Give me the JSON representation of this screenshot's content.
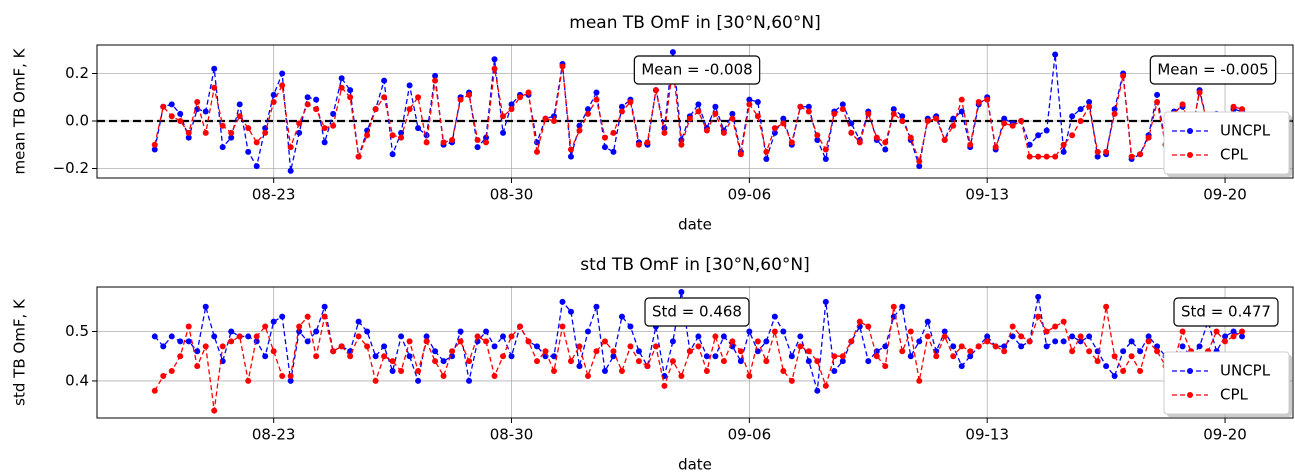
{
  "chart_data": [
    {
      "type": "line",
      "title": "mean TB OmF in [30°N,60°N]",
      "xlabel": "date",
      "ylabel": "mean TB OmF, K",
      "x": [
        231.5,
        231.75,
        232,
        232.25,
        232.5,
        232.75,
        233,
        233.25,
        233.5,
        233.75,
        234,
        234.25,
        234.5,
        234.75,
        235,
        235.25,
        235.5,
        235.75,
        236,
        236.25,
        236.5,
        236.75,
        237,
        237.25,
        237.5,
        237.75,
        238,
        238.25,
        238.5,
        238.75,
        239,
        239.25,
        239.5,
        239.75,
        240,
        240.25,
        240.5,
        240.75,
        241,
        241.25,
        241.5,
        241.75,
        242,
        242.25,
        242.5,
        242.75,
        243,
        243.25,
        243.5,
        243.75,
        244,
        244.25,
        244.5,
        244.75,
        245,
        245.25,
        245.5,
        245.75,
        246,
        246.25,
        246.5,
        246.75,
        247,
        247.25,
        247.5,
        247.75,
        248,
        248.25,
        248.5,
        248.75,
        249,
        249.25,
        249.5,
        249.75,
        250,
        250.25,
        250.5,
        250.75,
        251,
        251.25,
        251.5,
        251.75,
        252,
        252.25,
        252.5,
        252.75,
        253,
        253.25,
        253.5,
        253.75,
        254,
        254.25,
        254.5,
        254.75,
        255,
        255.25,
        255.5,
        255.75,
        256,
        256.25,
        256.5,
        256.75,
        257,
        257.25,
        257.5,
        257.75,
        258,
        258.25,
        258.5,
        258.75,
        259,
        259.25,
        259.5,
        259.75,
        260,
        260.25,
        260.5,
        260.75,
        261,
        261.25,
        261.5,
        261.75,
        262,
        262.25,
        262.5,
        262.75,
        263,
        263.25,
        263.5
      ],
      "xlim": [
        229.8,
        265
      ],
      "xticks": [
        {
          "value": 235,
          "label": "08-23"
        },
        {
          "value": 242,
          "label": "08-30"
        },
        {
          "value": 249,
          "label": "09-06"
        },
        {
          "value": 256,
          "label": "09-13"
        },
        {
          "value": 263,
          "label": "09-20"
        }
      ],
      "ylim": [
        -0.24,
        0.32
      ],
      "yticks": [
        {
          "value": -0.2,
          "label": "−0.2"
        },
        {
          "value": 0,
          "label": "0.0"
        },
        0.2
      ],
      "grid": true,
      "legend": "lower right",
      "hline": {
        "value": 0,
        "color": "#000000"
      },
      "series": [
        {
          "name": "UNCPL",
          "color": "#0000ff",
          "values": [
            -0.12,
            0.06,
            0.07,
            0.03,
            -0.07,
            0.05,
            0.04,
            0.22,
            -0.11,
            -0.07,
            0.07,
            -0.13,
            -0.19,
            -0.03,
            0.11,
            0.2,
            -0.21,
            -0.05,
            0.1,
            0.09,
            -0.09,
            0.03,
            0.18,
            0.13,
            -0.15,
            -0.04,
            0.05,
            0.17,
            -0.14,
            -0.05,
            0.15,
            -0.03,
            -0.06,
            0.19,
            -0.1,
            -0.09,
            0.1,
            0.12,
            -0.11,
            -0.07,
            0.26,
            -0.05,
            0.07,
            0.11,
            0.11,
            -0.09,
            0.01,
            0.02,
            0.24,
            -0.15,
            -0.02,
            0.05,
            0.12,
            -0.11,
            -0.13,
            0.06,
            0.09,
            -0.09,
            -0.1,
            0.13,
            -0.03,
            0.29,
            -0.08,
            0.02,
            0.07,
            -0.03,
            0.06,
            -0.04,
            0.03,
            -0.13,
            0.09,
            0.08,
            -0.16,
            -0.05,
            0.01,
            -0.1,
            0.06,
            0.06,
            -0.08,
            -0.16,
            0.04,
            0.07,
            -0.01,
            -0.08,
            0.04,
            -0.08,
            -0.12,
            0.05,
            0.02,
            -0.08,
            -0.19,
            0.01,
            0.02,
            -0.08,
            0.01,
            0.04,
            -0.11,
            0.07,
            0.1,
            -0.12,
            0.01,
            -0.01,
            0.0,
            -0.1,
            -0.06,
            -0.04,
            0.28,
            -0.13,
            0.02,
            0.05,
            0.08,
            -0.15,
            -0.14,
            0.05,
            0.2,
            -0.16,
            -0.14,
            -0.06,
            0.11,
            -0.1,
            0.04,
            0.06,
            -0.07,
            0.13,
            -0.02,
            0.03,
            -0.09,
            0.05,
            0.04
          ]
        },
        {
          "name": "CPL",
          "color": "#ff0000",
          "values": [
            -0.1,
            0.06,
            0.02,
            0.0,
            -0.05,
            0.08,
            -0.05,
            0.14,
            -0.02,
            -0.05,
            0.02,
            -0.03,
            -0.09,
            -0.05,
            0.08,
            0.15,
            -0.11,
            -0.01,
            0.07,
            0.05,
            -0.03,
            -0.02,
            0.14,
            0.1,
            -0.15,
            -0.06,
            0.05,
            0.1,
            -0.06,
            -0.07,
            0.05,
            0.1,
            -0.09,
            0.17,
            -0.09,
            -0.08,
            0.09,
            0.11,
            -0.08,
            -0.09,
            0.22,
            0.02,
            0.05,
            0.1,
            0.12,
            -0.13,
            0.01,
            0.0,
            0.23,
            -0.12,
            -0.04,
            0.03,
            0.09,
            -0.07,
            -0.05,
            0.04,
            0.08,
            -0.1,
            -0.09,
            0.13,
            -0.05,
            0.23,
            -0.1,
            0.01,
            0.04,
            -0.04,
            0.03,
            -0.05,
            0.01,
            -0.14,
            0.07,
            0.02,
            -0.13,
            -0.03,
            -0.01,
            -0.09,
            0.06,
            0.04,
            -0.06,
            -0.12,
            0.03,
            0.05,
            -0.05,
            -0.09,
            0.03,
            -0.07,
            -0.09,
            0.03,
            0.0,
            -0.07,
            -0.17,
            0.0,
            0.01,
            -0.08,
            -0.02,
            0.09,
            -0.1,
            0.08,
            0.09,
            -0.11,
            -0.01,
            -0.02,
            0.0,
            -0.15,
            -0.15,
            -0.15,
            -0.15,
            -0.1,
            -0.06,
            0.0,
            0.06,
            -0.13,
            -0.13,
            0.03,
            0.19,
            -0.15,
            -0.14,
            -0.07,
            0.08,
            -0.1,
            0.03,
            0.07,
            -0.05,
            0.12,
            -0.02,
            0.02,
            -0.05,
            0.06,
            0.05
          ]
        }
      ],
      "annotations": [
        {
          "text": "Mean = -0.008",
          "color": "#ff0000"
        },
        {
          "text": "Mean = -0.005",
          "color": "#0000ff"
        }
      ]
    },
    {
      "type": "line",
      "title": "std TB OmF in [30°N,60°N]",
      "xlabel": "date",
      "ylabel": "std TB OmF, K",
      "x": [
        231.5,
        231.75,
        232,
        232.25,
        232.5,
        232.75,
        233,
        233.25,
        233.5,
        233.75,
        234,
        234.25,
        234.5,
        234.75,
        235,
        235.25,
        235.5,
        235.75,
        236,
        236.25,
        236.5,
        236.75,
        237,
        237.25,
        237.5,
        237.75,
        238,
        238.25,
        238.5,
        238.75,
        239,
        239.25,
        239.5,
        239.75,
        240,
        240.25,
        240.5,
        240.75,
        241,
        241.25,
        241.5,
        241.75,
        242,
        242.25,
        242.5,
        242.75,
        243,
        243.25,
        243.5,
        243.75,
        244,
        244.25,
        244.5,
        244.75,
        245,
        245.25,
        245.5,
        245.75,
        246,
        246.25,
        246.5,
        246.75,
        247,
        247.25,
        247.5,
        247.75,
        248,
        248.25,
        248.5,
        248.75,
        249,
        249.25,
        249.5,
        249.75,
        250,
        250.25,
        250.5,
        250.75,
        251,
        251.25,
        251.5,
        251.75,
        252,
        252.25,
        252.5,
        252.75,
        253,
        253.25,
        253.5,
        253.75,
        254,
        254.25,
        254.5,
        254.75,
        255,
        255.25,
        255.5,
        255.75,
        256,
        256.25,
        256.5,
        256.75,
        257,
        257.25,
        257.5,
        257.75,
        258,
        258.25,
        258.5,
        258.75,
        259,
        259.25,
        259.5,
        259.75,
        260,
        260.25,
        260.5,
        260.75,
        261,
        261.25,
        261.5,
        261.75,
        262,
        262.25,
        262.5,
        262.75,
        263,
        263.25,
        263.5
      ],
      "xlim": [
        229.8,
        265
      ],
      "xticks": [
        {
          "value": 235,
          "label": "08-23"
        },
        {
          "value": 242,
          "label": "08-30"
        },
        {
          "value": 249,
          "label": "09-06"
        },
        {
          "value": 256,
          "label": "09-13"
        },
        {
          "value": 263,
          "label": "09-20"
        }
      ],
      "ylim": [
        0.325,
        0.59
      ],
      "yticks": [
        0.4,
        0.5
      ],
      "grid": true,
      "legend": "lower right",
      "series": [
        {
          "name": "UNCPL",
          "color": "#0000ff",
          "values": [
            0.49,
            0.47,
            0.49,
            0.48,
            0.48,
            0.46,
            0.55,
            0.49,
            0.44,
            0.5,
            0.49,
            0.49,
            0.48,
            0.45,
            0.52,
            0.53,
            0.4,
            0.5,
            0.48,
            0.5,
            0.55,
            0.46,
            0.47,
            0.46,
            0.52,
            0.5,
            0.45,
            0.47,
            0.42,
            0.49,
            0.45,
            0.4,
            0.49,
            0.46,
            0.44,
            0.45,
            0.5,
            0.4,
            0.48,
            0.5,
            0.47,
            0.49,
            0.45,
            0.51,
            0.48,
            0.47,
            0.45,
            0.45,
            0.56,
            0.54,
            0.43,
            0.5,
            0.55,
            0.42,
            0.45,
            0.53,
            0.51,
            0.46,
            0.43,
            0.51,
            0.41,
            0.48,
            0.58,
            0.46,
            0.49,
            0.45,
            0.45,
            0.49,
            0.47,
            0.44,
            0.5,
            0.46,
            0.48,
            0.53,
            0.5,
            0.45,
            0.49,
            0.44,
            0.38,
            0.56,
            0.42,
            0.44,
            0.48,
            0.51,
            0.44,
            0.46,
            0.47,
            0.53,
            0.55,
            0.45,
            0.48,
            0.52,
            0.46,
            0.5,
            0.47,
            0.43,
            0.45,
            0.47,
            0.49,
            0.47,
            0.47,
            0.49,
            0.47,
            0.48,
            0.57,
            0.47,
            0.48,
            0.48,
            0.49,
            0.48,
            0.49,
            0.46,
            0.43,
            0.41,
            0.46,
            0.48,
            0.46,
            0.49,
            0.47,
            0.45,
            0.42,
            0.47,
            0.45,
            0.47,
            0.52,
            0.46,
            0.49,
            0.5,
            0.49
          ]
        },
        {
          "name": "CPL",
          "color": "#ff0000",
          "values": [
            0.38,
            0.41,
            0.42,
            0.45,
            0.51,
            0.43,
            0.47,
            0.34,
            0.47,
            0.48,
            0.49,
            0.4,
            0.49,
            0.51,
            0.46,
            0.41,
            0.41,
            0.51,
            0.53,
            0.45,
            0.53,
            0.46,
            0.47,
            0.45,
            0.49,
            0.47,
            0.4,
            0.45,
            0.44,
            0.42,
            0.48,
            0.42,
            0.48,
            0.44,
            0.41,
            0.46,
            0.48,
            0.44,
            0.49,
            0.48,
            0.41,
            0.45,
            0.49,
            0.51,
            0.48,
            0.44,
            0.46,
            0.42,
            0.51,
            0.44,
            0.47,
            0.41,
            0.46,
            0.48,
            0.46,
            0.42,
            0.47,
            0.44,
            0.43,
            0.47,
            0.39,
            0.44,
            0.41,
            0.46,
            0.47,
            0.42,
            0.49,
            0.44,
            0.48,
            0.46,
            0.41,
            0.48,
            0.44,
            0.5,
            0.42,
            0.4,
            0.47,
            0.46,
            0.44,
            0.39,
            0.45,
            0.45,
            0.48,
            0.52,
            0.51,
            0.45,
            0.43,
            0.55,
            0.46,
            0.5,
            0.4,
            0.49,
            0.45,
            0.49,
            0.45,
            0.47,
            0.46,
            0.47,
            0.48,
            0.47,
            0.46,
            0.51,
            0.49,
            0.48,
            0.53,
            0.5,
            0.51,
            0.52,
            0.46,
            0.49,
            0.46,
            0.44,
            0.55,
            0.45,
            0.42,
            0.45,
            0.42,
            0.48,
            0.46,
            0.43,
            0.44,
            0.5,
            0.46,
            0.43,
            0.46,
            0.5,
            0.48,
            0.49,
            0.5
          ]
        }
      ],
      "annotations": [
        {
          "text": "Std = 0.468",
          "color": "#ff0000"
        },
        {
          "text": "Std = 0.477",
          "color": "#0000ff"
        }
      ]
    }
  ]
}
